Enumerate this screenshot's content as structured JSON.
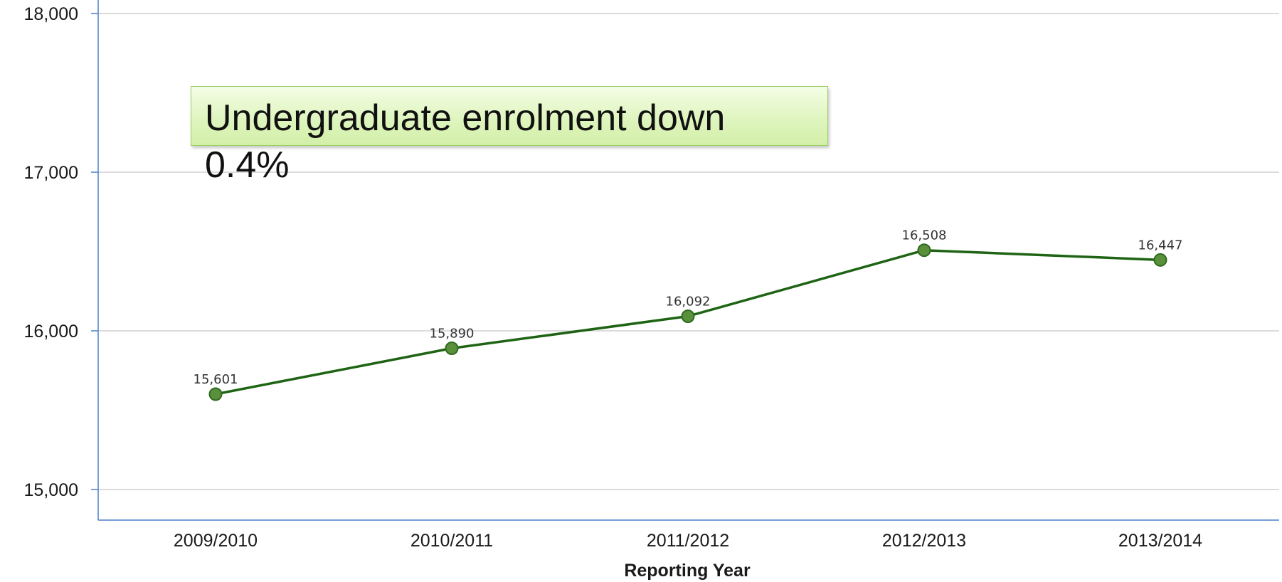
{
  "annotation": {
    "text": "Undergraduate enrolment down 0.4%"
  },
  "colors": {
    "line": "#1e6414",
    "marker_fill": "#5a8f3c",
    "marker_stroke": "#2e6b1f",
    "axis": "#4a7fc9",
    "grid": "#c8c8c8",
    "callout_fill": "#dff5bf",
    "callout_border": "#9ccf66"
  },
  "chart_data": {
    "type": "line",
    "title": "",
    "xlabel": "Reporting Year",
    "ylabel": "",
    "categories": [
      "2009/2010",
      "2010/2011",
      "2011/2012",
      "2012/2013",
      "2013/2014"
    ],
    "series": [
      {
        "values": [
          15601,
          15890,
          16092,
          16508,
          16447
        ],
        "data_labels": [
          "15,601",
          "15,890",
          "16,092",
          "16,508",
          "16,447"
        ]
      }
    ],
    "ylim": [
      15000,
      18000
    ],
    "yticks": [
      15000,
      16000,
      17000,
      18000
    ],
    "ytick_labels": [
      "15,000",
      "16,000",
      "17,000",
      "18,000"
    ],
    "grid": true,
    "legend": "none"
  }
}
